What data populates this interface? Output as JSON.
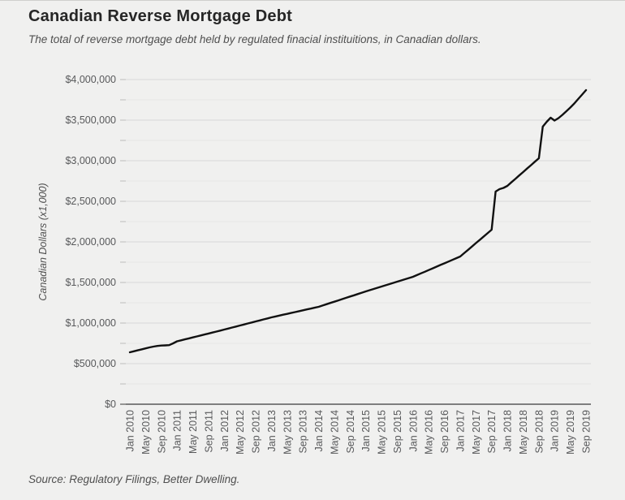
{
  "header": {
    "title": "Canadian Reverse Mortgage Debt",
    "subtitle": "The total of reverse mortgage debt held by regulated finacial instituitions, in Canadian dollars."
  },
  "footer": {
    "source": "Source: Regulatory Filings, Better Dwelling."
  },
  "colors": {
    "background": "#f0f0ef",
    "title": "#262626",
    "subtitle": "#4f4f4f",
    "line": "#111111",
    "axis": "#3a3a3a",
    "grid_major": "#d9d9d8",
    "grid_minor": "#e6e6e4",
    "tick": "#bdbdbb",
    "tick_label": "#58595b"
  },
  "chart_data": {
    "type": "line",
    "title": "Canadian Reverse Mortgage Debt",
    "xlabel": "",
    "ylabel": "Canadian Dollars (x1,000)",
    "ylim": [
      0,
      4000000
    ],
    "y_major_step": 500000,
    "y_minor_step": 250000,
    "grid": true,
    "legend": "none",
    "y_tick_labels": [
      "$0",
      "$500,000",
      "$1,000,000",
      "$1,500,000",
      "$2,000,000",
      "$2,500,000",
      "$3,000,000",
      "$3,500,000",
      "$4,000,000"
    ],
    "x_frequency": "monthly",
    "x_range": [
      "Jan 2010",
      "Sep 2019"
    ],
    "x_tick_every_n_months": 4,
    "x_tick_labels": [
      "Jan 2010",
      "May 2010",
      "Sep 2010",
      "Jan 2011",
      "May 2011",
      "Sep 2011",
      "Jan 2012",
      "May 2012",
      "Sep 2012",
      "Jan 2013",
      "May 2013",
      "Sep 2013",
      "Jan 2014",
      "May 2014",
      "Sep 2014",
      "Jan 2015",
      "May 2015",
      "Sep 2015",
      "Jan 2016",
      "May 2016",
      "Sep 2016",
      "Jan 2017",
      "May 2017",
      "Sep 2017",
      "Jan 2018",
      "May 2018",
      "Sep 2018",
      "Jan 2019",
      "May 2019",
      "Sep 2019"
    ],
    "values": [
      640000,
      652000,
      664000,
      676000,
      688000,
      700000,
      710000,
      718000,
      723000,
      725000,
      728000,
      750000,
      775000,
      787000,
      799000,
      811000,
      823000,
      835000,
      847000,
      859000,
      871000,
      883000,
      895000,
      907000,
      920000,
      932000,
      945000,
      957000,
      970000,
      982000,
      995000,
      1007000,
      1020000,
      1032000,
      1045000,
      1057000,
      1070000,
      1081000,
      1092000,
      1103000,
      1113000,
      1124000,
      1135000,
      1146000,
      1157000,
      1168000,
      1178000,
      1189000,
      1200000,
      1216000,
      1232000,
      1248000,
      1263000,
      1279000,
      1295000,
      1311000,
      1327000,
      1342000,
      1358000,
      1374000,
      1390000,
      1405000,
      1420000,
      1435000,
      1450000,
      1465000,
      1480000,
      1495000,
      1510000,
      1525000,
      1540000,
      1555000,
      1570000,
      1591000,
      1612000,
      1632000,
      1653000,
      1674000,
      1695000,
      1716000,
      1736000,
      1757000,
      1778000,
      1799000,
      1820000,
      1861000,
      1902000,
      1943000,
      1985000,
      2026000,
      2067000,
      2109000,
      2150000,
      2620000,
      2650000,
      2665000,
      2690000,
      2733000,
      2775000,
      2818000,
      2860000,
      2903000,
      2945000,
      2988000,
      3030000,
      3420000,
      3480000,
      3530000,
      3495000,
      3525000,
      3565000,
      3610000,
      3655000,
      3705000,
      3760000,
      3815000,
      3870000
    ]
  }
}
